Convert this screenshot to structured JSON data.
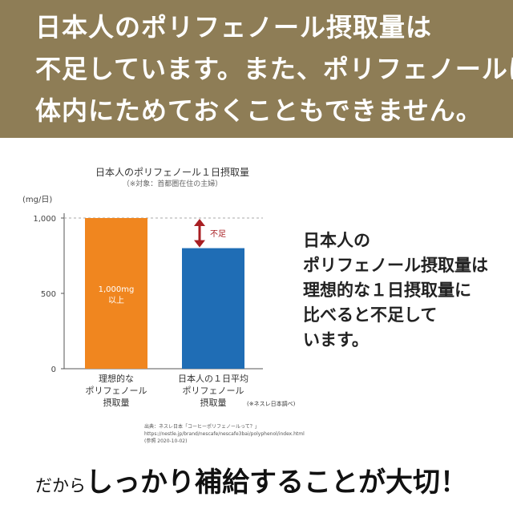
{
  "headline": {
    "lines": [
      "日本人のポリフェノール摂取量は",
      "不足しています。また、ポリフェノールは",
      "体内にためておくこともできません。"
    ]
  },
  "chart_data": {
    "type": "bar",
    "title": "日本人のポリフェノール１日摂取量",
    "note": "（※対象：首都圏在住の主婦）",
    "unit_label": "(mg/日)",
    "yticks": [
      "1,000",
      "500",
      "0"
    ],
    "ylim": [
      0,
      1000
    ],
    "grid": false,
    "categories": [
      [
        "理想的な",
        "ポリフェノール",
        "摂取量"
      ],
      [
        "日本人の１日平均",
        "ポリフェノール",
        "摂取量"
      ]
    ],
    "category_note": "(※ネスレ日本調べ)",
    "values": [
      1000,
      800
    ],
    "bar_colors": [
      "#f0861f",
      "#1f6db5"
    ],
    "bar_labels": [
      [
        "1,000mg",
        "以上"
      ],
      [
        "",
        ""
      ]
    ],
    "gap_label": "不足",
    "gap_color": "#a81e22",
    "reference_line": 1000,
    "source": [
      "出典：ネスレ日本「コーヒーポリフェノールって？」",
      "https://nestle.jp/brand/nescafe/nescafe3bai/polyphenol/index.html",
      "(参照 2020-10-02)"
    ]
  },
  "side": {
    "lines": [
      "日本人の",
      "ポリフェノール摂取量は",
      "理想的な１日摂取量に",
      "比べると不足して",
      "います。"
    ]
  },
  "bottom": {
    "prefix": "だから",
    "main": "しっかり補給することが大切！"
  },
  "colors": {
    "banner": "#8e7d56",
    "axis": "#555555",
    "dashed": "#aaaaaa"
  }
}
